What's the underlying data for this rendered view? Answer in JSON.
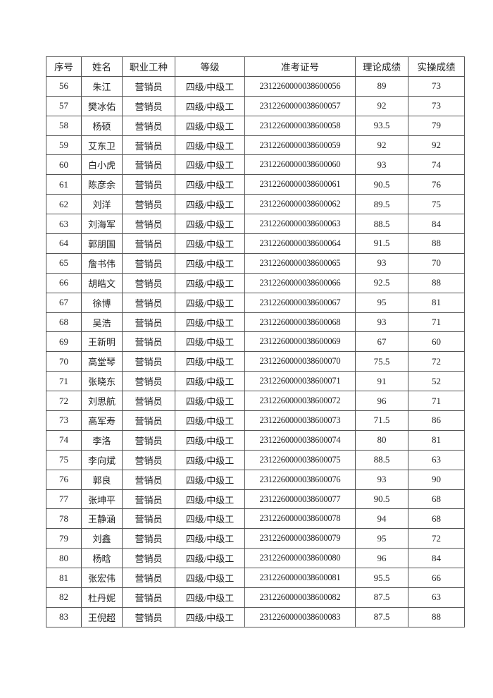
{
  "table": {
    "headers": [
      "序号",
      "姓名",
      "职业工种",
      "等级",
      "准考证号",
      "理论成绩",
      "实操成绩"
    ],
    "rows": [
      [
        "56",
        "朱江",
        "营销员",
        "四级/中级工",
        "2312260000038600056",
        "89",
        "73"
      ],
      [
        "57",
        "樊冰佑",
        "营销员",
        "四级/中级工",
        "2312260000038600057",
        "92",
        "73"
      ],
      [
        "58",
        "杨硕",
        "营销员",
        "四级/中级工",
        "2312260000038600058",
        "93.5",
        "79"
      ],
      [
        "59",
        "艾东卫",
        "营销员",
        "四级/中级工",
        "2312260000038600059",
        "92",
        "92"
      ],
      [
        "60",
        "白小虎",
        "营销员",
        "四级/中级工",
        "2312260000038600060",
        "93",
        "74"
      ],
      [
        "61",
        "陈彦余",
        "营销员",
        "四级/中级工",
        "2312260000038600061",
        "90.5",
        "76"
      ],
      [
        "62",
        "刘洋",
        "营销员",
        "四级/中级工",
        "2312260000038600062",
        "89.5",
        "75"
      ],
      [
        "63",
        "刘海军",
        "营销员",
        "四级/中级工",
        "2312260000038600063",
        "88.5",
        "84"
      ],
      [
        "64",
        "郭朋国",
        "营销员",
        "四级/中级工",
        "2312260000038600064",
        "91.5",
        "88"
      ],
      [
        "65",
        "詹书伟",
        "营销员",
        "四级/中级工",
        "2312260000038600065",
        "93",
        "70"
      ],
      [
        "66",
        "胡皓文",
        "营销员",
        "四级/中级工",
        "2312260000038600066",
        "92.5",
        "88"
      ],
      [
        "67",
        "徐博",
        "营销员",
        "四级/中级工",
        "2312260000038600067",
        "95",
        "81"
      ],
      [
        "68",
        "吴浩",
        "营销员",
        "四级/中级工",
        "2312260000038600068",
        "93",
        "71"
      ],
      [
        "69",
        "王新明",
        "营销员",
        "四级/中级工",
        "2312260000038600069",
        "67",
        "60"
      ],
      [
        "70",
        "高堂琴",
        "营销员",
        "四级/中级工",
        "2312260000038600070",
        "75.5",
        "72"
      ],
      [
        "71",
        "张晓东",
        "营销员",
        "四级/中级工",
        "2312260000038600071",
        "91",
        "52"
      ],
      [
        "72",
        "刘思航",
        "营销员",
        "四级/中级工",
        "2312260000038600072",
        "96",
        "71"
      ],
      [
        "73",
        "高军寿",
        "营销员",
        "四级/中级工",
        "2312260000038600073",
        "71.5",
        "86"
      ],
      [
        "74",
        "李洛",
        "营销员",
        "四级/中级工",
        "2312260000038600074",
        "80",
        "81"
      ],
      [
        "75",
        "李向斌",
        "营销员",
        "四级/中级工",
        "2312260000038600075",
        "88.5",
        "63"
      ],
      [
        "76",
        "郭良",
        "营销员",
        "四级/中级工",
        "2312260000038600076",
        "93",
        "90"
      ],
      [
        "77",
        "张坤平",
        "营销员",
        "四级/中级工",
        "2312260000038600077",
        "90.5",
        "68"
      ],
      [
        "78",
        "王静涵",
        "营销员",
        "四级/中级工",
        "2312260000038600078",
        "94",
        "68"
      ],
      [
        "79",
        "刘鑫",
        "营销员",
        "四级/中级工",
        "2312260000038600079",
        "95",
        "72"
      ],
      [
        "80",
        "杨晗",
        "营销员",
        "四级/中级工",
        "2312260000038600080",
        "96",
        "84"
      ],
      [
        "81",
        "张宏伟",
        "营销员",
        "四级/中级工",
        "2312260000038600081",
        "95.5",
        "66"
      ],
      [
        "82",
        "杜丹妮",
        "营销员",
        "四级/中级工",
        "2312260000038600082",
        "87.5",
        "63"
      ],
      [
        "83",
        "王倪超",
        "营销员",
        "四级/中级工",
        "2312260000038600083",
        "87.5",
        "88"
      ]
    ]
  }
}
